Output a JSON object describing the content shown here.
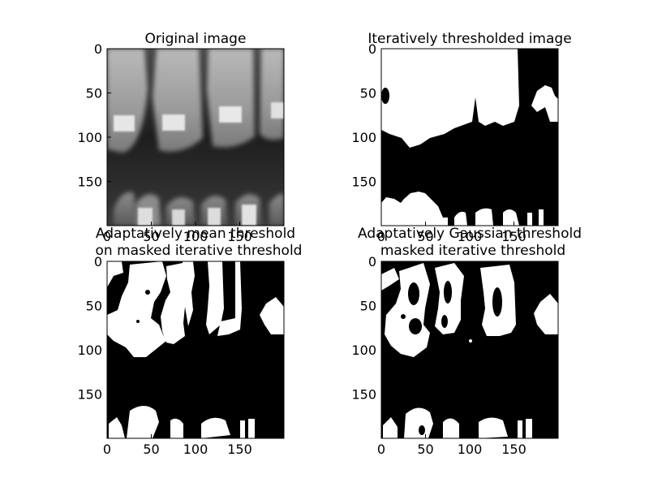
{
  "chart_data": [
    {
      "type": "image",
      "title": "Original image",
      "xlabel": "",
      "ylabel": "",
      "xlim": [
        0,
        200
      ],
      "ylim": [
        200,
        0
      ],
      "x_ticks": [
        "0",
        "50",
        "100",
        "150"
      ],
      "y_ticks": [
        "0",
        "50",
        "100",
        "150"
      ],
      "colormap": "gray",
      "content": "grayscale dental x-ray with upper and lower teeth and bright brackets"
    },
    {
      "type": "image",
      "title": "Iteratively thresholded image",
      "xlabel": "",
      "ylabel": "",
      "xlim": [
        0,
        200
      ],
      "ylim": [
        200,
        0
      ],
      "x_ticks": [
        "0",
        "50",
        "100",
        "150"
      ],
      "y_ticks": [
        "0",
        "50",
        "100",
        "150"
      ],
      "colormap": "binary",
      "content": "binary mask of teeth"
    },
    {
      "type": "image",
      "title": "Adaptatively mean threshold\non masked iterative threshold",
      "xlabel": "",
      "ylabel": "",
      "xlim": [
        0,
        200
      ],
      "ylim": [
        200,
        0
      ],
      "x_ticks": [
        "0",
        "50",
        "100",
        "150"
      ],
      "y_ticks": [
        "0",
        "50",
        "100",
        "150"
      ],
      "colormap": "binary",
      "content": "binary mask with separated tooth blobs"
    },
    {
      "type": "image",
      "title": "Adaptatively Gaussian threshold\nmasked iterative threshold",
      "xlabel": "",
      "ylabel": "",
      "xlim": [
        0,
        200
      ],
      "ylim": [
        200,
        0
      ],
      "x_ticks": [
        "0",
        "50",
        "100",
        "150"
      ],
      "y_ticks": [
        "0",
        "50",
        "100",
        "150"
      ],
      "colormap": "binary",
      "content": "binary mask with noisier separated tooth blobs"
    }
  ]
}
